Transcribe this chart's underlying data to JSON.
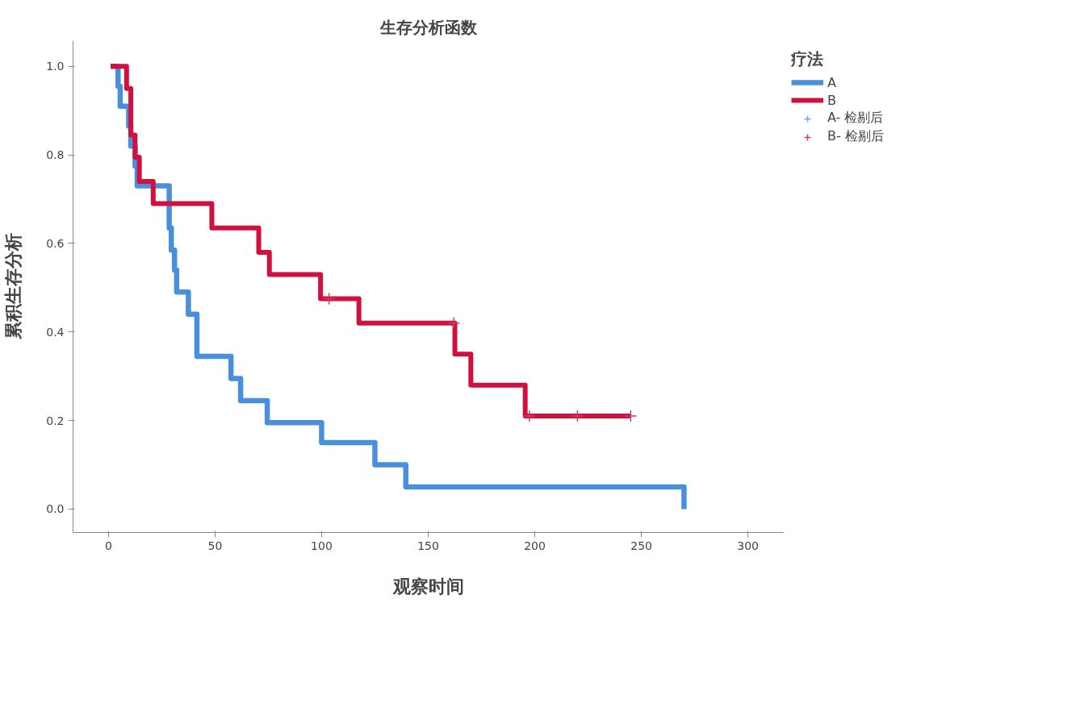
{
  "chart_data": {
    "type": "step",
    "title": "生存分析函数",
    "xlabel": "观察时间",
    "ylabel": "累积生存分析",
    "legend_title": "疗法",
    "legend": "right",
    "grid": false,
    "xlim": [
      -16.6,
      316.6
    ],
    "ylim": [
      -0.053,
      1.058
    ],
    "xticks": [
      0,
      50,
      100,
      150,
      200,
      250,
      300
    ],
    "yticks": [
      {
        "value": 0,
        "label": "0.0"
      },
      {
        "value": 0.2,
        "label": "0.2"
      },
      {
        "value": 0.4,
        "label": "0.4"
      },
      {
        "value": 0.6,
        "label": "0.6"
      },
      {
        "value": 0.8,
        "label": "0.8"
      },
      {
        "value": 1,
        "label": "1.0"
      }
    ],
    "series": [
      {
        "name": "A",
        "color": "#4a8fdb",
        "x": [
          1,
          4.5,
          5.5,
          9.5,
          10.5,
          12.5,
          13.5,
          28.5,
          29.5,
          31,
          32,
          37.5,
          41.5,
          57.5,
          62,
          74.5,
          100,
          125,
          139.5,
          270
        ],
        "values": [
          1.0,
          0.955,
          0.91,
          0.865,
          0.82,
          0.775,
          0.73,
          0.635,
          0.585,
          0.54,
          0.49,
          0.44,
          0.345,
          0.295,
          0.245,
          0.195,
          0.15,
          0.1,
          0.05,
          0
        ]
      },
      {
        "name": "B",
        "color": "#cf1140",
        "x": [
          1,
          8.5,
          10.5,
          12.5,
          14.5,
          21,
          48.5,
          70.5,
          75.5,
          99.5,
          117.5,
          162.5,
          170,
          195.5,
          245
        ],
        "values": [
          1.0,
          0.95,
          0.845,
          0.795,
          0.74,
          0.69,
          0.635,
          0.58,
          0.53,
          0.475,
          0.42,
          0.35,
          0.28,
          0.21,
          0.21
        ]
      },
      {
        "name": "A- 检剔后",
        "type": "scatter",
        "marker": "cross",
        "color": "#6fa6e0"
      },
      {
        "name": "B- 检剔后",
        "type": "scatter",
        "marker": "cross",
        "color": "#d63a5e",
        "x": [
          103.5,
          162,
          197.5,
          220,
          245
        ],
        "values": [
          0.475,
          0.42,
          0.21,
          0.21,
          0.21
        ]
      }
    ]
  }
}
